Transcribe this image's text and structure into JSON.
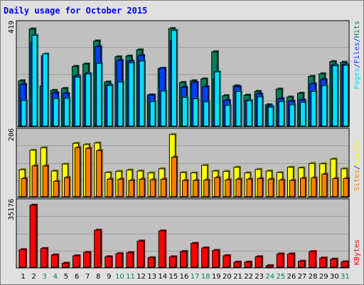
{
  "title": "Daily usage for October 2015",
  "colors": {
    "hits": "#00805c",
    "files": "#0040ff",
    "pages": "#00e0ff",
    "visits": "#ffff00",
    "sites": "#ff8000",
    "kbytes": "#ff0000",
    "weekend_label": "#00805c",
    "weekday_label": "#000000",
    "separator": "#0000ff",
    "title": "#0000ff"
  },
  "legend": {
    "hits": "Hits",
    "files": "Files",
    "pages": "Pages",
    "visits": "Visits",
    "sites": "Sites",
    "kbytes": "KBytes",
    "separator": "/"
  },
  "chart_data": [
    {
      "type": "bar",
      "panel": "hits-files-pages",
      "max_label": "419",
      "ylim": [
        0,
        419
      ],
      "categories": [
        "1",
        "2",
        "3",
        "4",
        "5",
        "6",
        "7",
        "8",
        "9",
        "10",
        "11",
        "12",
        "13",
        "14",
        "15",
        "16",
        "17",
        "18",
        "19",
        "20",
        "21",
        "22",
        "23",
        "24",
        "25",
        "26",
        "27",
        "28",
        "29",
        "30",
        "31"
      ],
      "weekend_days": [
        "3",
        "4",
        "10",
        "11",
        "17",
        "18",
        "24",
        "25",
        "31"
      ],
      "series": [
        {
          "name": "Hits",
          "values": [
            195,
            411,
            173,
            155,
            163,
            255,
            265,
            361,
            190,
            295,
            298,
            324,
            136,
            246,
            413,
            188,
            195,
            203,
            316,
            133,
            174,
            135,
            151,
            95,
            160,
            127,
            143,
            213,
            224,
            275,
            272
          ]
        },
        {
          "name": "Files",
          "values": [
            180,
            355,
            300,
            145,
            142,
            215,
            225,
            337,
            177,
            280,
            277,
            300,
            135,
            247,
            362,
            168,
            188,
            170,
            202,
            113,
            170,
            112,
            140,
            89,
            120,
            110,
            115,
            182,
            200,
            260,
            262
          ]
        },
        {
          "name": "Pages",
          "values": [
            113,
            385,
            307,
            121,
            122,
            210,
            223,
            268,
            175,
            190,
            270,
            278,
            108,
            152,
            405,
            126,
            120,
            107,
            232,
            93,
            150,
            112,
            128,
            85,
            108,
            95,
            105,
            150,
            175,
            258,
            260
          ]
        }
      ]
    },
    {
      "type": "bar",
      "panel": "visits-sites",
      "max_label": "206",
      "ylim": [
        0,
        206
      ],
      "categories": [
        "1",
        "2",
        "3",
        "4",
        "5",
        "6",
        "7",
        "8",
        "9",
        "10",
        "11",
        "12",
        "13",
        "14",
        "15",
        "16",
        "17",
        "18",
        "19",
        "20",
        "21",
        "22",
        "23",
        "24",
        "25",
        "26",
        "27",
        "28",
        "29",
        "30",
        "31"
      ],
      "series": [
        {
          "name": "Visits",
          "values": [
            90,
            152,
            160,
            86,
            108,
            174,
            170,
            175,
            81,
            85,
            89,
            86,
            80,
            93,
            202,
            81,
            80,
            104,
            86,
            85,
            98,
            80,
            91,
            86,
            81,
            98,
            96,
            110,
            109,
            124,
            93
          ]
        },
        {
          "name": "Sites",
          "values": [
            62,
            102,
            102,
            53,
            65,
            160,
            158,
            151,
            60,
            60,
            56,
            60,
            58,
            60,
            130,
            56,
            56,
            57,
            65,
            58,
            60,
            60,
            62,
            60,
            57,
            56,
            63,
            64,
            76,
            62,
            62
          ]
        }
      ]
    },
    {
      "type": "bar",
      "panel": "kbytes",
      "max_label": "35176",
      "ylim": [
        0,
        35176
      ],
      "categories": [
        "1",
        "2",
        "3",
        "4",
        "5",
        "6",
        "7",
        "8",
        "9",
        "10",
        "11",
        "12",
        "13",
        "14",
        "15",
        "16",
        "17",
        "18",
        "19",
        "20",
        "21",
        "22",
        "23",
        "24",
        "25",
        "26",
        "27",
        "28",
        "29",
        "30",
        "31"
      ],
      "series": [
        {
          "name": "KBytes",
          "values": [
            10280,
            34400,
            10900,
            7440,
            2930,
            6940,
            8800,
            20800,
            6440,
            8120,
            8640,
            14930,
            5910,
            20460,
            6420,
            9230,
            13680,
            11200,
            9850,
            7000,
            3520,
            3520,
            6420,
            1610,
            7930,
            7930,
            3980,
            9230,
            5750,
            5130,
            3660
          ]
        }
      ]
    }
  ]
}
